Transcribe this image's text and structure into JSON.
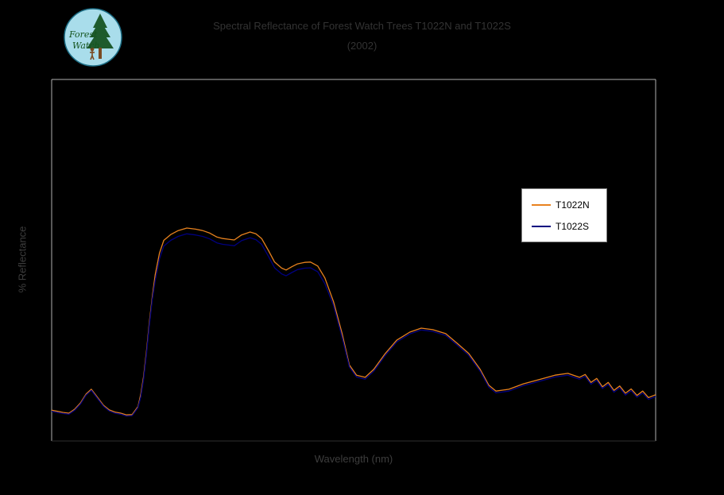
{
  "page": {
    "background": "#000000"
  },
  "logo": {
    "line1": "Forest",
    "line2": "Watch",
    "circle_fill": "#a9ddeb",
    "circle_border": "#1d6e86",
    "tree_color": "#1e5b2d",
    "trunk_color": "#7a4a21",
    "text_color": "#14541e"
  },
  "title": {
    "line1": "Spectral Reflectance of Forest Watch Trees T1022N and T1022S",
    "line2": "(2002)",
    "color": "#333333"
  },
  "axes": {
    "x_label": "Wavelength (nm)",
    "y_label": "% Reflectance",
    "label_color": "#3d3d3d",
    "border_color": "#b0b0b0",
    "bottom_border_color": "#2e2e2e"
  },
  "legend": {
    "items": [
      {
        "label": "T1022N",
        "color": "#e8821e"
      },
      {
        "label": "T1022S",
        "color": "#000080"
      }
    ]
  },
  "chart_data": {
    "type": "line",
    "title": "Spectral Reflectance of Forest Watch Trees T1022N and T1022S",
    "xlabel": "Wavelength (nm)",
    "ylabel": "% Reflectance",
    "xlim": [
      400,
      2500
    ],
    "ylim": [
      0,
      100
    ],
    "grid": false,
    "legend_position": "inside-right",
    "x": [
      400,
      420,
      440,
      460,
      480,
      500,
      520,
      538,
      560,
      580,
      600,
      620,
      640,
      660,
      680,
      700,
      710,
      720,
      730,
      740,
      750,
      760,
      775,
      790,
      814,
      840,
      870,
      900,
      925,
      950,
      975,
      995,
      1015,
      1035,
      1060,
      1090,
      1110,
      1130,
      1155,
      1175,
      1200,
      1215,
      1235,
      1255,
      1280,
      1300,
      1325,
      1350,
      1380,
      1410,
      1435,
      1460,
      1490,
      1520,
      1560,
      1600,
      1645,
      1685,
      1725,
      1770,
      1810,
      1850,
      1890,
      1920,
      1945,
      1990,
      2040,
      2100,
      2150,
      2195,
      2235,
      2255,
      2275,
      2295,
      2315,
      2335,
      2355,
      2375,
      2395,
      2415,
      2435,
      2455,
      2475,
      2500
    ],
    "series": [
      {
        "name": "T1022N",
        "color": "#e8821e",
        "values": [
          8.5,
          8.2,
          7.9,
          7.7,
          8.8,
          10.5,
          13.0,
          14.3,
          12.0,
          9.9,
          8.6,
          8.0,
          7.7,
          7.2,
          7.3,
          9.5,
          13.0,
          18.0,
          25.0,
          33.0,
          40.0,
          46.0,
          52.0,
          55.5,
          57.1,
          58.2,
          58.9,
          58.6,
          58.2,
          57.5,
          56.4,
          56.0,
          55.8,
          55.6,
          57.0,
          57.8,
          57.3,
          56.0,
          52.5,
          49.5,
          47.8,
          47.3,
          48.2,
          49.0,
          49.4,
          49.5,
          48.4,
          45.1,
          38.5,
          29.7,
          21.0,
          18.2,
          17.6,
          19.8,
          24.2,
          27.9,
          30.1,
          31.2,
          30.8,
          29.7,
          27.0,
          24.2,
          19.8,
          15.4,
          13.8,
          14.3,
          15.8,
          17.1,
          18.2,
          18.7,
          17.6,
          18.4,
          16.2,
          17.3,
          15.0,
          16.2,
          14.0,
          15.2,
          13.2,
          14.4,
          12.6,
          13.8,
          12.0,
          12.8
        ]
      },
      {
        "name": "T1022S",
        "color": "#000080",
        "values": [
          8.2,
          7.9,
          7.6,
          7.4,
          8.5,
          10.2,
          12.7,
          14.0,
          11.7,
          9.6,
          8.3,
          7.7,
          7.4,
          6.9,
          7.0,
          9.2,
          12.2,
          17.2,
          24.2,
          32.2,
          39.2,
          44.4,
          50.4,
          53.9,
          55.5,
          56.6,
          57.3,
          57.0,
          56.6,
          55.9,
          54.8,
          54.4,
          54.2,
          54.0,
          55.4,
          56.2,
          55.7,
          54.4,
          50.9,
          47.9,
          46.2,
          45.7,
          46.6,
          47.4,
          47.8,
          47.9,
          46.8,
          43.5,
          37.5,
          28.7,
          20.5,
          17.7,
          17.1,
          19.3,
          23.7,
          27.4,
          29.6,
          30.7,
          30.3,
          29.2,
          26.5,
          23.7,
          19.3,
          14.9,
          13.3,
          13.8,
          15.3,
          16.6,
          17.7,
          18.2,
          17.1,
          17.9,
          15.7,
          16.8,
          14.5,
          15.7,
          13.5,
          14.7,
          12.7,
          13.9,
          12.1,
          13.3,
          11.5,
          12.3
        ]
      }
    ]
  }
}
